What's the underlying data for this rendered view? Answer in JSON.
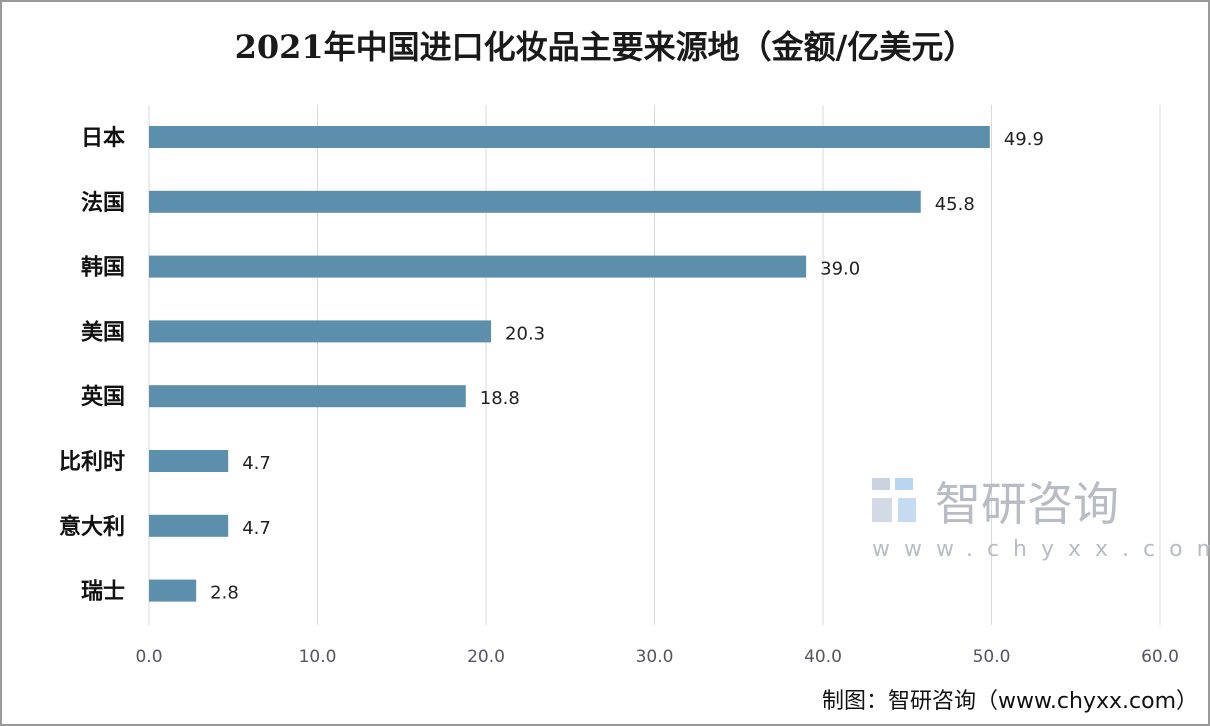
{
  "chart_data": {
    "type": "bar",
    "orientation": "horizontal",
    "title": "2021年中国进口化妆品主要来源地（金额/亿美元）",
    "categories": [
      "日本",
      "法国",
      "韩国",
      "美国",
      "英国",
      "比利时",
      "意大利",
      "瑞士"
    ],
    "values": [
      49.9,
      45.8,
      39.0,
      20.3,
      18.8,
      4.7,
      4.7,
      2.8
    ],
    "value_labels": [
      "49.9",
      "45.8",
      "39.0",
      "20.3",
      "18.8",
      "4.7",
      "4.7",
      "2.8"
    ],
    "xlim": [
      0,
      60
    ],
    "xticks": [
      "0.0",
      "10.0",
      "20.0",
      "30.0",
      "40.0",
      "50.0",
      "60.0"
    ],
    "grid": true,
    "xlabel": "",
    "ylabel": "",
    "bar_color": "#5b8fab"
  },
  "watermark": {
    "name": "智研咨询",
    "url": "www.chyxx.com"
  },
  "source": "制图：智研咨询（www.chyxx.com）"
}
